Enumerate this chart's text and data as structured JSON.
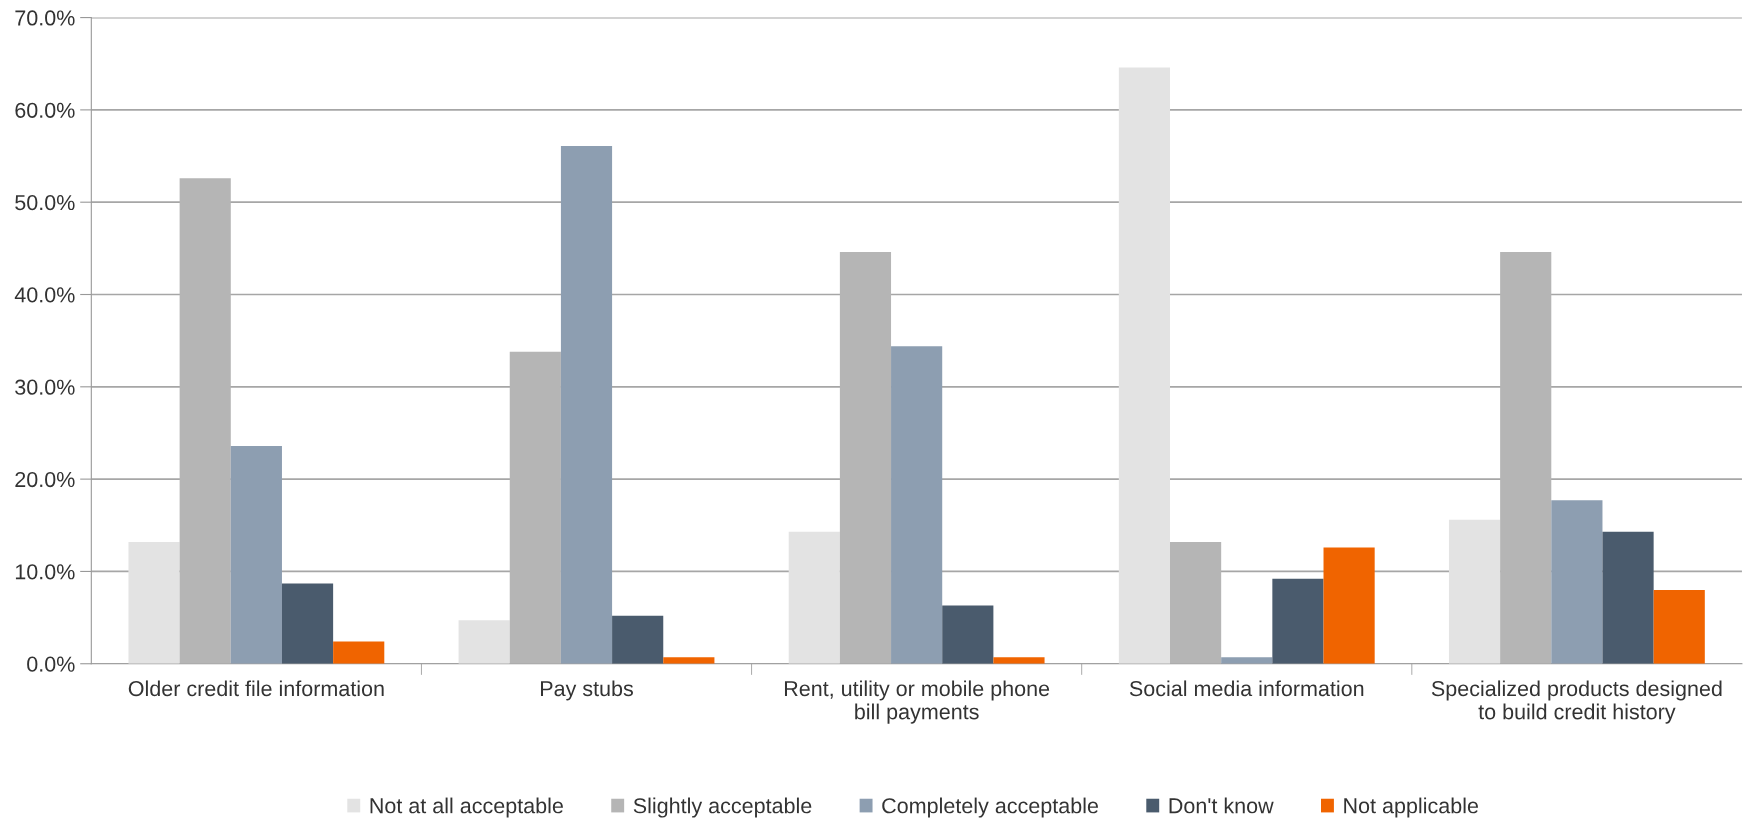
{
  "chart_data": {
    "type": "bar",
    "categories": [
      "Older credit file information",
      "Pay stubs",
      "Rent, utility or mobile phone bill payments",
      "Social media information",
      "Specialized products designed to build credit history"
    ],
    "series": [
      {
        "name": "Not at all acceptable",
        "color": "#e3e3e3",
        "values": [
          13.2,
          4.7,
          14.3,
          64.6,
          15.6
        ]
      },
      {
        "name": "Slightly acceptable",
        "color": "#b5b5b5",
        "values": [
          52.6,
          33.8,
          44.6,
          13.2,
          44.6
        ]
      },
      {
        "name": "Completely acceptable",
        "color": "#8d9eb1",
        "values": [
          23.6,
          56.1,
          34.4,
          0.7,
          17.7
        ]
      },
      {
        "name": "Don't know",
        "color": "#4a5b6d",
        "values": [
          8.7,
          5.2,
          6.3,
          9.2,
          14.3
        ]
      },
      {
        "name": "Not applicable",
        "color": "#f06400",
        "values": [
          2.4,
          0.7,
          0.7,
          12.6,
          8.0
        ]
      }
    ],
    "ylim": [
      0,
      70
    ],
    "yticks": [
      {
        "value": 0,
        "label": "0.0%"
      },
      {
        "value": 10,
        "label": "10.0%"
      },
      {
        "value": 20,
        "label": "20.0%"
      },
      {
        "value": 30,
        "label": "30.0%"
      },
      {
        "value": 40,
        "label": "40.0%"
      },
      {
        "value": 50,
        "label": "50.0%"
      },
      {
        "value": 60,
        "label": "60.0%"
      },
      {
        "value": 70,
        "label": "70.0%"
      }
    ],
    "grid": "y",
    "legend": "bottom"
  }
}
